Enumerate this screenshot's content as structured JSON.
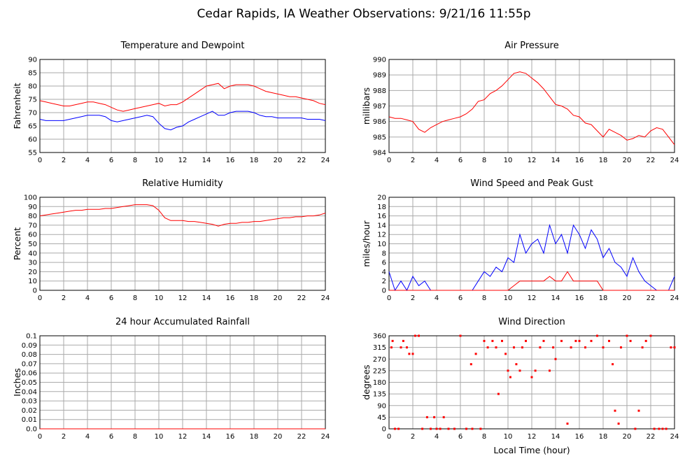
{
  "title": "Cedar Rapids, IA Weather Observations: 9/21/16 11:55p",
  "chart_data": [
    {
      "type": "line",
      "title": "Temperature and Dewpoint",
      "ylabel": "Fahrenheit",
      "x": [
        0,
        0.5,
        1,
        1.5,
        2,
        2.5,
        3,
        3.5,
        4,
        4.5,
        5,
        5.5,
        6,
        6.5,
        7,
        7.5,
        8,
        8.5,
        9,
        9.5,
        10,
        10.5,
        11,
        11.5,
        12,
        12.5,
        13,
        13.5,
        14,
        14.5,
        15,
        15.5,
        16,
        16.5,
        17,
        17.5,
        18,
        18.5,
        19,
        19.5,
        20,
        20.5,
        21,
        21.5,
        22,
        22.5,
        23,
        23.5,
        24
      ],
      "series": [
        {
          "name": "Temperature",
          "color": "#ff0000",
          "values": [
            74.5,
            74,
            73.5,
            73,
            72.5,
            72.5,
            73,
            73.5,
            74,
            74,
            73.5,
            73,
            72,
            71,
            70.5,
            71,
            71.5,
            72,
            72.5,
            73,
            73.5,
            72.5,
            73,
            73,
            74,
            75.5,
            77,
            78.5,
            80,
            80.5,
            81,
            79,
            80,
            80.5,
            80.5,
            80.5,
            80,
            79,
            78,
            77.5,
            77,
            76.5,
            76,
            76,
            75.5,
            75,
            74.5,
            73.5,
            73
          ]
        },
        {
          "name": "Dewpoint",
          "color": "#0000ff",
          "values": [
            67.5,
            67,
            67,
            67,
            67,
            67.5,
            68,
            68.5,
            69,
            69,
            69,
            68.5,
            67,
            66.5,
            67,
            67.5,
            68,
            68.5,
            69,
            68.5,
            66,
            64,
            63.5,
            64.5,
            65,
            66.5,
            67.5,
            68.5,
            69.5,
            70.5,
            69,
            69,
            70,
            70.5,
            70.5,
            70.5,
            70,
            69,
            68.5,
            68.5,
            68,
            68,
            68,
            68,
            68,
            67.5,
            67.5,
            67.5,
            67
          ]
        }
      ],
      "xlim": [
        0,
        24
      ],
      "xticks": [
        0,
        2,
        4,
        6,
        8,
        10,
        12,
        14,
        16,
        18,
        20,
        22,
        24
      ],
      "ylim": [
        55,
        90
      ],
      "yticks": [
        55,
        60,
        65,
        70,
        75,
        80,
        85,
        90
      ],
      "grid": true
    },
    {
      "type": "line",
      "title": "Air Pressure",
      "ylabel": "millibars",
      "x": [
        0,
        0.5,
        1,
        1.5,
        2,
        2.5,
        3,
        3.5,
        4,
        4.5,
        5,
        5.5,
        6,
        6.5,
        7,
        7.5,
        8,
        8.5,
        9,
        9.5,
        10,
        10.5,
        11,
        11.5,
        12,
        12.5,
        13,
        13.5,
        14,
        14.5,
        15,
        15.5,
        16,
        16.5,
        17,
        17.5,
        18,
        18.5,
        19,
        19.5,
        20,
        20.5,
        21,
        21.5,
        22,
        22.5,
        23,
        23.5,
        24
      ],
      "series": [
        {
          "name": "Pressure",
          "color": "#ff0000",
          "values": [
            986.3,
            986.2,
            986.2,
            986.1,
            986,
            985.5,
            985.3,
            985.6,
            985.8,
            986,
            986.1,
            986.2,
            986.3,
            986.5,
            986.8,
            987.3,
            987.4,
            987.8,
            988,
            988.3,
            988.7,
            989.1,
            989.2,
            989.1,
            988.8,
            988.5,
            988.1,
            987.6,
            987.1,
            987,
            986.8,
            986.4,
            986.3,
            985.9,
            985.8,
            985.4,
            985,
            985.5,
            985.3,
            985.1,
            984.8,
            984.9,
            985.1,
            985,
            985.4,
            985.6,
            985.5,
            985,
            984.5
          ]
        }
      ],
      "xlim": [
        0,
        24
      ],
      "xticks": [
        0,
        2,
        4,
        6,
        8,
        10,
        12,
        14,
        16,
        18,
        20,
        22,
        24
      ],
      "ylim": [
        984,
        990
      ],
      "yticks": [
        984,
        985,
        986,
        987,
        988,
        989,
        990
      ],
      "grid": true
    },
    {
      "type": "line",
      "title": "Relative Humidity",
      "ylabel": "Percent",
      "x": [
        0,
        0.5,
        1,
        1.5,
        2,
        2.5,
        3,
        3.5,
        4,
        4.5,
        5,
        5.5,
        6,
        6.5,
        7,
        7.5,
        8,
        8.5,
        9,
        9.5,
        10,
        10.5,
        11,
        11.5,
        12,
        12.5,
        13,
        13.5,
        14,
        14.5,
        15,
        15.5,
        16,
        16.5,
        17,
        17.5,
        18,
        18.5,
        19,
        19.5,
        20,
        20.5,
        21,
        21.5,
        22,
        22.5,
        23,
        23.5,
        24
      ],
      "series": [
        {
          "name": "Humidity",
          "color": "#ff0000",
          "values": [
            80,
            81,
            82,
            83,
            84,
            85,
            86,
            86,
            87,
            87,
            87,
            88,
            88,
            89,
            90,
            91,
            92,
            92,
            92,
            91,
            86,
            78,
            75,
            75,
            75,
            74,
            74,
            73,
            72,
            71,
            69,
            71,
            72,
            72,
            73,
            73,
            74,
            74,
            75,
            76,
            77,
            78,
            78,
            79,
            79,
            80,
            80,
            81,
            83
          ]
        }
      ],
      "xlim": [
        0,
        24
      ],
      "xticks": [
        0,
        2,
        4,
        6,
        8,
        10,
        12,
        14,
        16,
        18,
        20,
        22,
        24
      ],
      "ylim": [
        0,
        100
      ],
      "yticks": [
        0,
        10,
        20,
        30,
        40,
        50,
        60,
        70,
        80,
        90,
        100
      ],
      "grid": true
    },
    {
      "type": "line",
      "title": "Wind Speed and Peak Gust",
      "ylabel": "miles/hour",
      "x": [
        0,
        0.5,
        1,
        1.5,
        2,
        2.5,
        3,
        3.5,
        4,
        4.5,
        5,
        5.5,
        6,
        6.5,
        7,
        7.5,
        8,
        8.5,
        9,
        9.5,
        10,
        10.5,
        11,
        11.5,
        12,
        12.5,
        13,
        13.5,
        14,
        14.5,
        15,
        15.5,
        16,
        16.5,
        17,
        17.5,
        18,
        18.5,
        19,
        19.5,
        20,
        20.5,
        21,
        21.5,
        22,
        22.5,
        23,
        23.5,
        24
      ],
      "series": [
        {
          "name": "Wind Speed",
          "color": "#0000ff",
          "values": [
            4,
            0,
            2,
            0,
            3,
            1,
            2,
            0,
            0,
            0,
            0,
            0,
            0,
            0,
            0,
            2,
            4,
            3,
            5,
            4,
            7,
            6,
            12,
            8,
            10,
            11,
            8,
            14,
            10,
            12,
            8,
            14,
            12,
            9,
            13,
            11,
            7,
            9,
            6,
            5,
            3,
            7,
            4,
            2,
            1,
            0,
            0,
            0,
            3
          ]
        },
        {
          "name": "Peak Gust",
          "color": "#ff0000",
          "values": [
            0,
            0,
            0,
            0,
            0,
            0,
            0,
            0,
            0,
            0,
            0,
            0,
            0,
            0,
            0,
            0,
            0,
            0,
            0,
            0,
            0,
            1,
            2,
            2,
            2,
            2,
            2,
            3,
            2,
            2,
            4,
            2,
            2,
            2,
            2,
            2,
            0,
            0,
            0,
            0,
            0,
            0,
            0,
            0,
            0,
            0,
            0,
            0,
            0
          ]
        }
      ],
      "xlim": [
        0,
        24
      ],
      "xticks": [
        0,
        2,
        4,
        6,
        8,
        10,
        12,
        14,
        16,
        18,
        20,
        22,
        24
      ],
      "ylim": [
        0,
        20
      ],
      "yticks": [
        0,
        2,
        4,
        6,
        8,
        10,
        12,
        14,
        16,
        18,
        20
      ],
      "grid": true
    },
    {
      "type": "line",
      "title": "24 hour Accumulated Rainfall",
      "ylabel": "Inches",
      "x": [
        0,
        24
      ],
      "series": [
        {
          "name": "Rainfall",
          "color": "#ff0000",
          "values": [
            0,
            0
          ]
        }
      ],
      "xlim": [
        0,
        24
      ],
      "xticks": [
        0,
        2,
        4,
        6,
        8,
        10,
        12,
        14,
        16,
        18,
        20,
        22,
        24
      ],
      "ylim": [
        0,
        0.1
      ],
      "yticks": [
        {
          "value": 0,
          "label": "0.0"
        },
        0.01,
        0.02,
        0.03,
        0.04,
        0.05,
        0.06,
        0.07,
        0.08,
        0.09,
        {
          "value": 0.1,
          "label": "0.1"
        }
      ],
      "grid": true
    },
    {
      "type": "scatter",
      "title": "Wind Direction",
      "ylabel": "degrees",
      "xlabel": "Local Time (hour)",
      "color": "#ff0000",
      "x": [
        0.2,
        0.3,
        0.5,
        0.8,
        1,
        1.2,
        1.5,
        1.7,
        2,
        2.2,
        2.5,
        2.8,
        3.2,
        3.5,
        3.8,
        4,
        4.3,
        4.6,
        5,
        5.5,
        6,
        6.5,
        6.9,
        7,
        7.3,
        7.7,
        8,
        8.3,
        8.7,
        9,
        9.2,
        9.5,
        9.8,
        10,
        10.2,
        10.5,
        10.7,
        11,
        11.2,
        11.5,
        12,
        12.3,
        12.7,
        13,
        13.5,
        13.8,
        14,
        14.5,
        15,
        15.3,
        15.7,
        16,
        16.5,
        17,
        17.5,
        18,
        18.5,
        18.8,
        19,
        19.3,
        19.5,
        20,
        20.3,
        20.7,
        21,
        21.3,
        21.6,
        22,
        22.3,
        22.7,
        23,
        23.3,
        23.7,
        24
      ],
      "values": [
        315,
        340,
        0,
        0,
        315,
        340,
        315,
        290,
        290,
        360,
        360,
        0,
        45,
        0,
        45,
        0,
        0,
        45,
        0,
        0,
        360,
        0,
        250,
        0,
        290,
        0,
        340,
        315,
        340,
        315,
        135,
        340,
        290,
        225,
        200,
        315,
        250,
        225,
        315,
        340,
        200,
        225,
        315,
        340,
        225,
        315,
        270,
        340,
        20,
        315,
        340,
        340,
        315,
        340,
        360,
        315,
        340,
        250,
        70,
        20,
        315,
        360,
        340,
        0,
        70,
        315,
        340,
        360,
        0,
        0,
        0,
        0,
        315,
        315
      ],
      "xlim": [
        0,
        24
      ],
      "xticks": [
        0,
        2,
        4,
        6,
        8,
        10,
        12,
        14,
        16,
        18,
        20,
        22,
        24
      ],
      "ylim": [
        0,
        360
      ],
      "yticks": [
        0,
        45,
        90,
        135,
        180,
        225,
        270,
        315,
        360
      ],
      "grid": true
    }
  ]
}
